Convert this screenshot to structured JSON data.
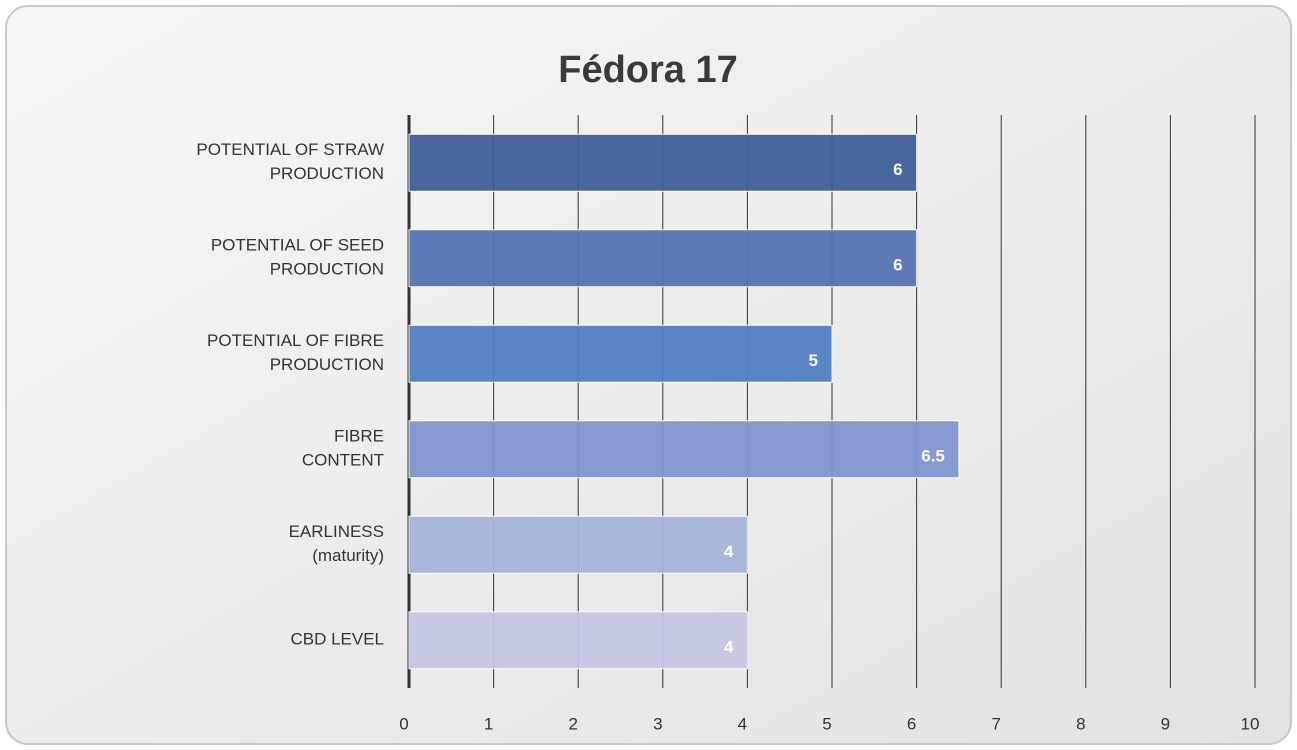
{
  "chart_data": {
    "type": "hbar",
    "title": "Fédora 17",
    "categories": [
      "POTENTIAL OF STRAW\nPRODUCTION",
      "POTENTIAL OF SEED\nPRODUCTION",
      "POTENTIAL OF FIBRE\nPRODUCTION",
      "FIBRE\nCONTENT",
      "EARLINESS\n(maturity)",
      "CBD LEVEL"
    ],
    "values": [
      6,
      6,
      5,
      6.5,
      4,
      4
    ],
    "colors": [
      "#3f5f98",
      "#5674b4",
      "#5380c4",
      "#7f96cf",
      "#a7b5d9",
      "#c4c8e2"
    ],
    "xlim": [
      0,
      10
    ],
    "xticks": [
      0,
      1,
      2,
      3,
      4,
      5,
      6,
      7,
      8,
      9,
      10
    ],
    "grid": true
  }
}
